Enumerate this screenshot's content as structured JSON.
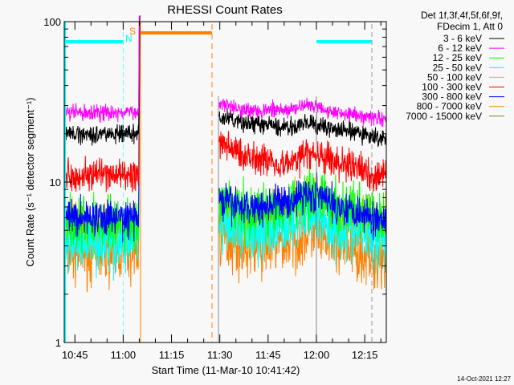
{
  "chart_data": {
    "type": "line",
    "title": "RHESSI Count Rates",
    "xlabel": "Start Time (11-Mar-10 10:41:42)",
    "ylabel": "Count Rate (s⁻¹ detector segment⁻¹)",
    "yscale": "log",
    "ylim": [
      1,
      100
    ],
    "xlim": [
      "10:41:42",
      "12:21:42"
    ],
    "x_tick_labels": [
      "10:45",
      "11:00",
      "11:15",
      "11:30",
      "11:45",
      "12:00",
      "12:15"
    ],
    "y_tick_labels": [
      "1",
      "10",
      "100"
    ],
    "legend_header": [
      "Det 1f,3f,4f,5f,6f,9f,",
      "FDecim 1, Att 0"
    ],
    "legend_position": "right",
    "data_gap": [
      "11:05:30",
      "11:29:50"
    ],
    "flare_spike_time": "11:05",
    "anchor_times_post": [
      "11:30",
      "11:40",
      "11:50",
      "11:58",
      "12:08",
      "12:19"
    ],
    "series": [
      {
        "name": "3 - 6 keV",
        "color": "#000000",
        "pre": 20,
        "post": [
          25,
          23,
          22,
          23,
          21,
          19
        ],
        "noise": 0.04
      },
      {
        "name": "6 - 12 keV",
        "color": "#ff00ff",
        "pre": 27,
        "post": [
          31,
          28,
          28,
          30,
          27,
          25
        ],
        "noise": 0.035
      },
      {
        "name": "12 - 25 keV",
        "color": "#00ff00",
        "pre": 5.5,
        "post": [
          7,
          6.5,
          7,
          8.5,
          7,
          6
        ],
        "noise": 0.12
      },
      {
        "name": "25 - 50 keV",
        "color": "#00ffff",
        "pre": 4.3,
        "post": [
          5.2,
          5,
          5.3,
          6.3,
          5,
          4.5
        ],
        "noise": 0.13
      },
      {
        "name": "50 - 100 keV",
        "color": "#c8c800",
        "pre": 5.0,
        "post": [
          6,
          5.6,
          6,
          7.5,
          6,
          5.2
        ],
        "noise": 0.12
      },
      {
        "name": "100 - 300 keV",
        "color": "#ff0000",
        "pre": 11,
        "post": [
          17,
          14.5,
          13,
          15,
          13,
          11
        ],
        "noise": 0.07
      },
      {
        "name": "300 - 800 keV",
        "color": "#0000ff",
        "pre": 6,
        "post": [
          7.5,
          7,
          7.5,
          8.5,
          7,
          6
        ],
        "noise": 0.08
      },
      {
        "name": "800 - 7000 keV",
        "color": "#ff8000",
        "pre": 3.7,
        "post": [
          4.5,
          4,
          4.2,
          4.8,
          4,
          3.4
        ],
        "noise": 0.14
      },
      {
        "name": "7000 - 15000 keV",
        "color": "#808020",
        "pre": 0,
        "post": [
          0,
          0,
          0,
          0,
          0,
          0
        ],
        "noise": 0
      }
    ],
    "markers": {
      "n_label": "N",
      "s_label": "S",
      "n_color": "#00ffff",
      "s_color": "#ff8000"
    }
  },
  "footer": {
    "timestamp": "14-Oct-2021 12:27"
  }
}
